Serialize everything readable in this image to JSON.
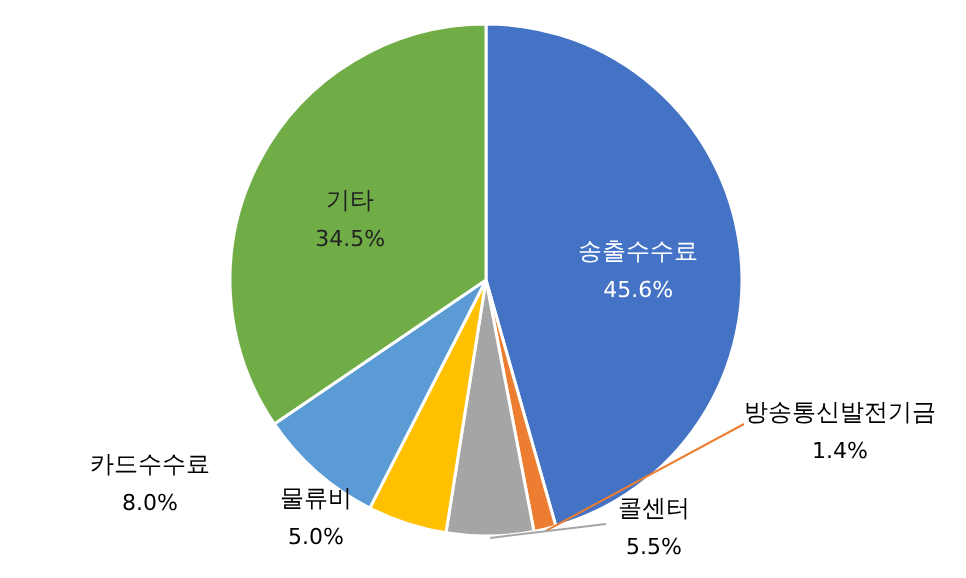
{
  "chart_data": {
    "type": "pie",
    "categories": [
      "송출수수료",
      "방송통신발전기금",
      "콜센터",
      "물류비",
      "카드수수료",
      "기타"
    ],
    "values": [
      45.6,
      1.4,
      5.5,
      5.0,
      8.0,
      34.5
    ],
    "colors": [
      "#4472c4",
      "#ed7d31",
      "#a5a5a5",
      "#ffc000",
      "#5b9bd5",
      "#70ad47"
    ],
    "value_labels": [
      "45.6%",
      "1.4%",
      "5.5%",
      "5.0%",
      "8.0%",
      "34.5%"
    ]
  }
}
